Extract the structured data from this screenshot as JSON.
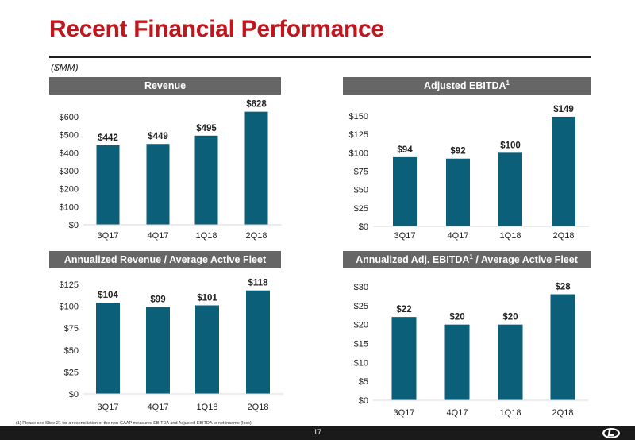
{
  "page": {
    "title": "Recent Financial Performance",
    "units": "($MM)",
    "footnote": "(1)    Please see Slide 21 for a reconciliation of the non-GAAP measures EBITDA and Adjusted EBITDA to net income (loss).",
    "page_number": "17"
  },
  "colors": {
    "bar": "#0b5f78",
    "title": "#c0171e",
    "header": "#666666",
    "rule": "#1f1f1f"
  },
  "chart_data": [
    {
      "type": "bar",
      "title": "Revenue",
      "title_sup": "",
      "title_rest": "",
      "categories": [
        "3Q17",
        "4Q17",
        "1Q18",
        "2Q18"
      ],
      "values": [
        442,
        449,
        495,
        628
      ],
      "data_labels": [
        "$442",
        "$449",
        "$495",
        "$628"
      ],
      "ylim": [
        0,
        600
      ],
      "yticks": [
        0,
        100,
        200,
        300,
        400,
        500,
        600
      ],
      "ytick_labels": [
        "$0",
        "$100",
        "$200",
        "$300",
        "$400",
        "$500",
        "$600"
      ],
      "grid": false
    },
    {
      "type": "bar",
      "title": "Adjusted EBITDA",
      "title_sup": "1",
      "title_rest": "",
      "categories": [
        "3Q17",
        "4Q17",
        "1Q18",
        "2Q18"
      ],
      "values": [
        94,
        92,
        100,
        149
      ],
      "data_labels": [
        "$94",
        "$92",
        "$100",
        "$149"
      ],
      "ylim": [
        0,
        150
      ],
      "yticks": [
        0,
        25,
        50,
        75,
        100,
        125,
        150
      ],
      "ytick_labels": [
        "$0",
        "$25",
        "$50",
        "$75",
        "$100",
        "$125",
        "$150"
      ],
      "grid": false
    },
    {
      "type": "bar",
      "title": "Annualized Revenue / Average Active Fleet",
      "title_sup": "",
      "title_rest": "",
      "categories": [
        "3Q17",
        "4Q17",
        "1Q18",
        "2Q18"
      ],
      "values": [
        104,
        99,
        101,
        118
      ],
      "data_labels": [
        "$104",
        "$99",
        "$101",
        "$118"
      ],
      "ylim": [
        0,
        125
      ],
      "yticks": [
        0,
        25,
        50,
        75,
        100,
        125
      ],
      "ytick_labels": [
        "$0",
        "$25",
        "$50",
        "$75",
        "$100",
        "$125"
      ],
      "grid": false
    },
    {
      "type": "bar",
      "title": "Annualized Adj. EBITDA",
      "title_sup": "1",
      "title_rest": " / Average Active Fleet",
      "categories": [
        "3Q17",
        "4Q17",
        "1Q18",
        "2Q18"
      ],
      "values": [
        22,
        20,
        20,
        28
      ],
      "data_labels": [
        "$22",
        "$20",
        "$20",
        "$28"
      ],
      "ylim": [
        0,
        30
      ],
      "yticks": [
        0,
        5,
        10,
        15,
        20,
        25,
        30
      ],
      "ytick_labels": [
        "$0",
        "$5",
        "$10",
        "$15",
        "$20",
        "$25",
        "$30"
      ],
      "grid": false
    }
  ]
}
